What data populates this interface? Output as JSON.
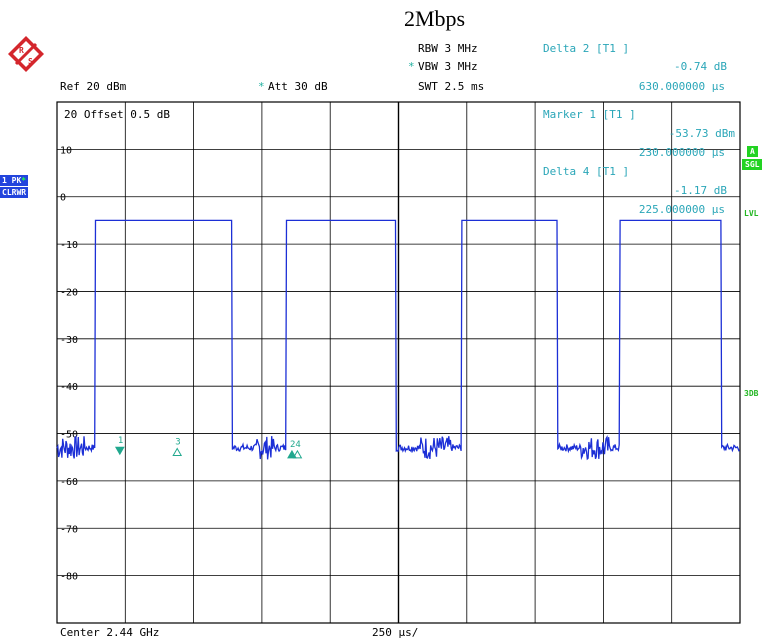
{
  "header": {
    "title": "2Mbps",
    "rbw": "RBW 3 MHz",
    "vbw": "VBW 3 MHz",
    "swt": "SWT 2.5 ms",
    "ref": "Ref  20 dBm",
    "att": "Att  30 dB",
    "star": "*",
    "delta2_title": "Delta 2 [T1 ]",
    "delta2_value": "-0.74 dB",
    "delta2_time": "630.000000 µs"
  },
  "panel": {
    "offset": "20  Offset  0.5 dB",
    "marker1_title": "Marker 1 [T1 ]",
    "marker1_value": "-53.73 dBm",
    "marker1_time": "230.000000 µs",
    "delta4_title": "Delta 4 [T1 ]",
    "delta4_value": "-1.17 dB",
    "delta4_time": "225.000000 µs"
  },
  "left_badges": {
    "pk": "1 PK",
    "clrwr": "CLRWR"
  },
  "right_badges": {
    "a": "A",
    "sgl": "SGL",
    "lvl": "LVL",
    "db3": "3DB"
  },
  "footer": {
    "center": "Center 2.44 GHz",
    "div": "250 µs/"
  },
  "colors": {
    "trace": "#1c2fd6",
    "marker": "#21a88e",
    "grid": "#000000",
    "logo": "#d4262c"
  },
  "chart_data": {
    "type": "line",
    "title": "2Mbps",
    "xlabel": "Center 2.44 GHz",
    "x_division": "250 µs/",
    "ylabel": "",
    "ylim": [
      -90,
      20
    ],
    "xlim": [
      0,
      2500
    ],
    "y_tick_labels": [
      "20",
      "10",
      "0",
      "-10",
      "-20",
      "-30",
      "-40",
      "-50",
      "-60",
      "-70",
      "-80"
    ],
    "grid": true,
    "series": [
      {
        "x": [
          0,
          50,
          100,
          130,
          140,
          145,
          150,
          200,
          250,
          300,
          350,
          400,
          450,
          500,
          550,
          600,
          630,
          640,
          645,
          650,
          700,
          750,
          800,
          850,
          900,
          950,
          1000,
          1050,
          1100,
          1150,
          1200,
          1230,
          1240,
          1245,
          1250,
          1300,
          1350,
          1400,
          1450,
          1500,
          1550,
          1600,
          1650,
          1700,
          1750,
          1800,
          1830,
          1840,
          1845,
          1850,
          1900,
          1950,
          2000,
          2050,
          2100,
          2150,
          2200,
          2250,
          2300,
          2350,
          2400,
          2430,
          2440,
          2445,
          2450,
          2500
        ],
        "y": [
          -53,
          -53,
          -52,
          -53,
          -10,
          -5,
          -5,
          -5,
          -5,
          -5,
          -5,
          -5,
          -5,
          -5,
          -5,
          -5,
          -5,
          -50,
          -55,
          -53,
          -52,
          -53,
          -53,
          -52,
          -53,
          -53,
          -52,
          -53,
          -53,
          -5,
          -5,
          -5,
          -5,
          -52,
          -53,
          -53,
          -52,
          -53,
          -53,
          -52,
          -53,
          -52,
          -53,
          -52,
          -53,
          -53,
          -5,
          -5,
          -5,
          -5,
          -5,
          -5,
          -5,
          -5,
          -52,
          -53,
          -53,
          -52,
          -53,
          -53,
          -52,
          -53,
          -5,
          -5,
          -5,
          -5
        ]
      }
    ],
    "pulses_x_ranges_us": [
      [
        140,
        640
      ],
      [
        840,
        1240
      ],
      [
        1480,
        1830
      ],
      [
        2060,
        2430
      ]
    ],
    "pulse_level_dBm": -5,
    "noise_floor_dBm": -53,
    "markers": [
      {
        "label": "1",
        "x": 230,
        "y": -53.73
      },
      {
        "label": "3",
        "x": 440,
        "y": -54
      },
      {
        "label": "2",
        "x": 860,
        "y": -54.5
      },
      {
        "label": "4",
        "x": 880,
        "y": -54.5
      }
    ]
  }
}
